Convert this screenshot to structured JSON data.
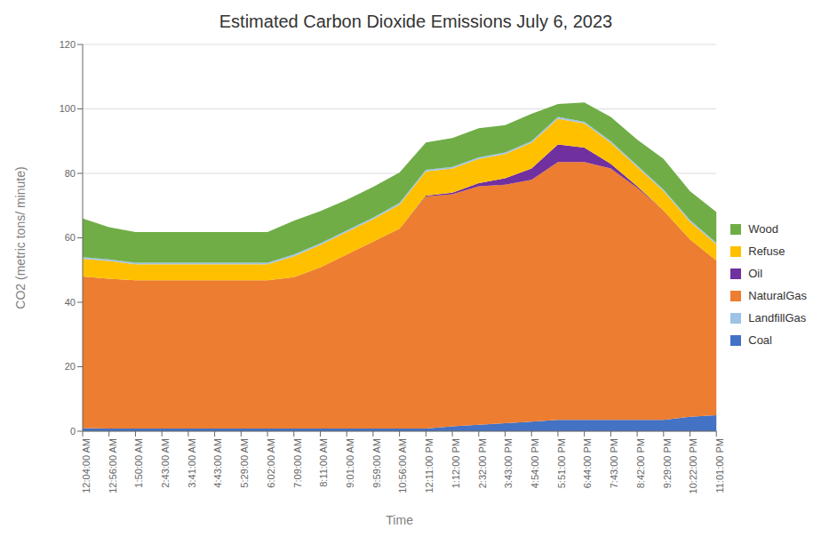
{
  "chart_data": {
    "type": "area",
    "stacked": true,
    "title": "Estimated Carbon Dioxide Emissions July 6, 2023",
    "xlabel": "Time",
    "ylabel": "CO2 (metric tons/ minute)",
    "ylim": [
      0,
      120
    ],
    "yticks": [
      0,
      20,
      40,
      60,
      80,
      100,
      120
    ],
    "grid": true,
    "legend": "right",
    "categories": [
      "12:04:00 AM",
      "12:56:00 AM",
      "1:50:00 AM",
      "2:43:00 AM",
      "3:41:00 AM",
      "4:43:00 AM",
      "5:29:00 AM",
      "6:02:00 AM",
      "7:09:00 AM",
      "8:11:00 AM",
      "9:01:00 AM",
      "9:59:00 AM",
      "10:56:00 AM",
      "12:11:00 PM",
      "1:12:00 PM",
      "2:32:00 PM",
      "3:43:00 PM",
      "4:54:00 PM",
      "5:51:00 PM",
      "6:44:00 PM",
      "7:43:00 PM",
      "8:42:00 PM",
      "9:29:00 PM",
      "10:22:00 PM",
      "11:01:00 PM"
    ],
    "series": [
      {
        "name": "Coal",
        "color": "#4472C4",
        "values": [
          1.0,
          0.8,
          0.8,
          0.8,
          0.8,
          0.8,
          0.8,
          0.8,
          0.8,
          0.8,
          0.8,
          0.8,
          0.8,
          0.8,
          1.5,
          2.0,
          2.5,
          3.0,
          3.5,
          3.5,
          3.5,
          3.5,
          3.5,
          4.5,
          5.0
        ]
      },
      {
        "name": "NaturalGas",
        "color": "#ED7D31",
        "values": [
          47.0,
          46.5,
          46.0,
          46.0,
          46.0,
          46.0,
          46.0,
          46.0,
          47.0,
          50.0,
          54.0,
          58.0,
          62.0,
          72.0,
          72.0,
          74.0,
          74.0,
          75.0,
          80.0,
          80.0,
          78.0,
          72.0,
          65.0,
          55.0,
          48.0
        ]
      },
      {
        "name": "Oil",
        "color": "#7030A0",
        "values": [
          0.0,
          0.0,
          0.0,
          0.0,
          0.0,
          0.0,
          0.0,
          0.0,
          0.0,
          0.0,
          0.0,
          0.0,
          0.0,
          0.3,
          0.5,
          1.0,
          2.0,
          3.5,
          5.5,
          4.5,
          1.5,
          0.5,
          0.0,
          0.0,
          0.0
        ]
      },
      {
        "name": "Refuse",
        "color": "#FFC000",
        "values": [
          5.5,
          5.5,
          5.0,
          5.0,
          5.0,
          5.0,
          5.0,
          5.0,
          6.5,
          7.0,
          7.0,
          7.0,
          7.5,
          7.5,
          7.5,
          7.5,
          7.5,
          8.0,
          8.0,
          7.5,
          6.5,
          6.0,
          6.0,
          5.5,
          5.0
        ]
      },
      {
        "name": "LandfillGas",
        "color": "#9DC3E6",
        "values": [
          0.5,
          0.5,
          0.5,
          0.5,
          0.5,
          0.5,
          0.5,
          0.5,
          0.5,
          0.5,
          0.5,
          0.5,
          0.5,
          0.5,
          0.5,
          0.5,
          0.5,
          0.5,
          0.5,
          0.5,
          0.5,
          0.5,
          0.5,
          0.5,
          0.5
        ]
      },
      {
        "name": "Wood",
        "color": "#70AD47",
        "values": [
          12.0,
          10.0,
          9.5,
          9.5,
          9.5,
          9.5,
          9.5,
          9.5,
          10.5,
          10.0,
          9.5,
          9.5,
          9.5,
          8.5,
          9.0,
          9.0,
          8.5,
          8.5,
          4.0,
          6.0,
          7.5,
          8.0,
          9.5,
          9.0,
          9.5
        ]
      }
    ]
  }
}
